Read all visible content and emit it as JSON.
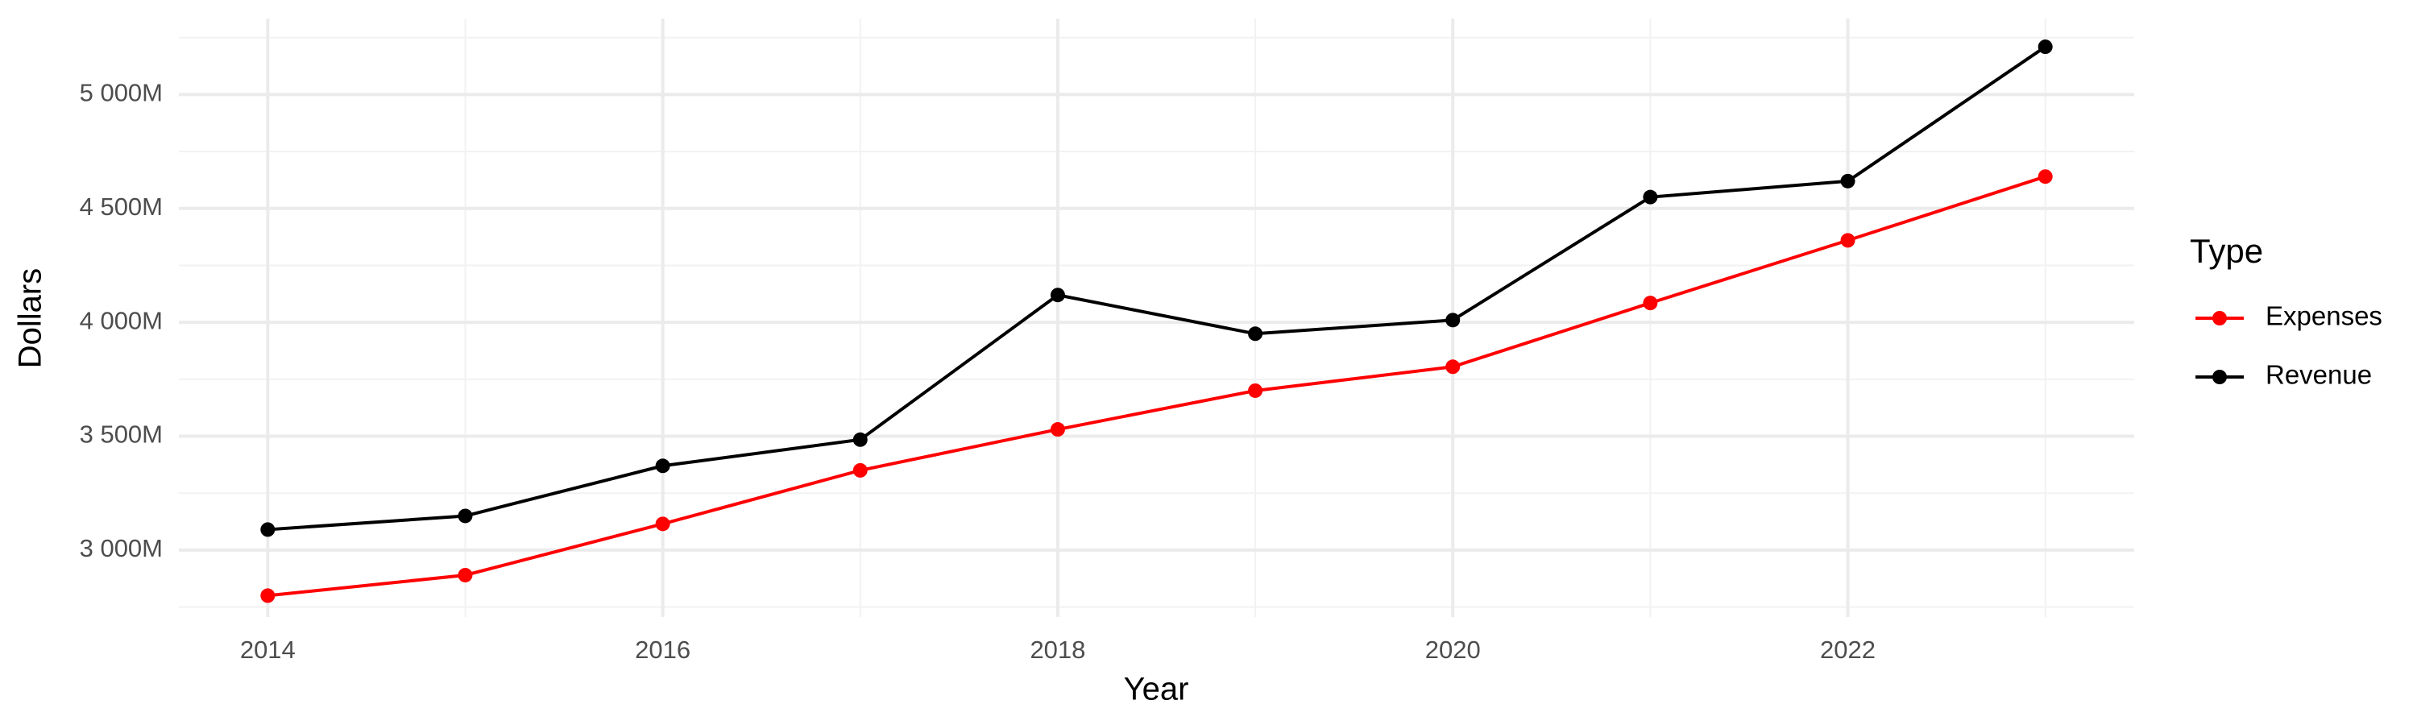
{
  "chart_data": {
    "type": "line",
    "x_label": "Year",
    "y_label": "Dollars",
    "legend_title": "Type",
    "x": [
      2014,
      2015,
      2016,
      2017,
      2018,
      2019,
      2020,
      2021,
      2022,
      2023
    ],
    "series": [
      {
        "name": "Expenses",
        "color": "#ff0000",
        "values": [
          2800,
          2890,
          3115,
          3350,
          3530,
          3700,
          3805,
          4085,
          4360,
          4640
        ]
      },
      {
        "name": "Revenue",
        "color": "#000000",
        "values": [
          3090,
          3150,
          3370,
          3485,
          4120,
          3950,
          4010,
          4550,
          4620,
          5210
        ]
      }
    ],
    "xlim": [
      2013.55,
      2023.45
    ],
    "xticks": [
      2014,
      2016,
      2018,
      2020,
      2022
    ],
    "x_minor_ticks": [
      2015,
      2017,
      2019,
      2021,
      2023
    ],
    "ylim": [
      2706,
      5334
    ],
    "yticks": [
      {
        "value": 3000,
        "label": "3 000M"
      },
      {
        "value": 3500,
        "label": "3 500M"
      },
      {
        "value": 4000,
        "label": "4 000M"
      },
      {
        "value": 4500,
        "label": "4 500M"
      },
      {
        "value": 5000,
        "label": "5 000M"
      }
    ],
    "y_minor_ticks": [
      2750,
      3250,
      3750,
      4250,
      4750,
      5250
    ],
    "grid": true,
    "legend_position": "right"
  }
}
